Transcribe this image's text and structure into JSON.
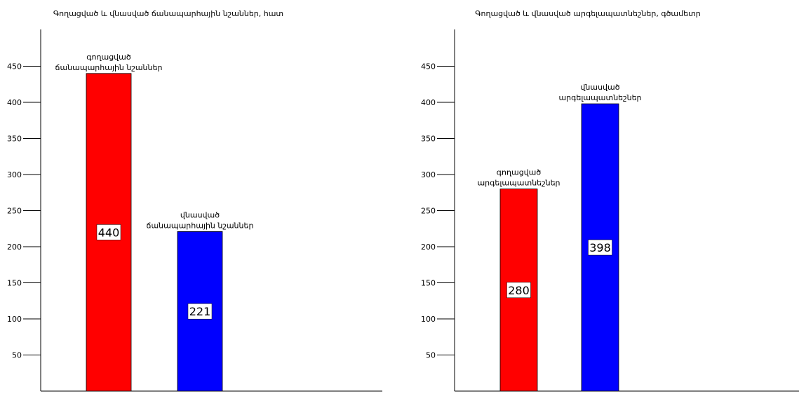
{
  "chart_data": [
    {
      "type": "bar",
      "title": "Գողացված և վնասված ճանապարհային նշաններ, հատ",
      "categories": [
        "գողացված ճանապարհային նշաններ",
        "վնասված ճանապարհային նշաններ"
      ],
      "category_lines": [
        [
          "գողացված",
          "ճանապարհային նշաններ"
        ],
        [
          "վնասված",
          "ճանապարհային նշաններ"
        ]
      ],
      "values": [
        440,
        221
      ],
      "value_labels": [
        "440",
        "221"
      ],
      "colors": [
        "#ff0000",
        "#0000ff"
      ],
      "ylim": [
        0,
        500
      ],
      "yticks": [
        50,
        100,
        150,
        200,
        250,
        300,
        350,
        400,
        450
      ],
      "xlabel": "",
      "ylabel": "",
      "grid": false
    },
    {
      "type": "bar",
      "title": "Գողացված և վնասված արգելապատնեշներ, գծամետր",
      "categories": [
        "գողացված արգելապատնեշներ",
        "վնասված արգելապատնեշներ"
      ],
      "category_lines": [
        [
          "գողացված",
          "արգելապատնեշներ"
        ],
        [
          "վնասված",
          "արգելապատնեշներ"
        ]
      ],
      "values": [
        280,
        398
      ],
      "value_labels": [
        "280",
        "398"
      ],
      "colors": [
        "#ff0000",
        "#0000ff"
      ],
      "ylim": [
        0,
        500
      ],
      "yticks": [
        50,
        100,
        150,
        200,
        250,
        300,
        350,
        400,
        450
      ],
      "xlabel": "",
      "ylabel": "",
      "grid": false
    }
  ]
}
